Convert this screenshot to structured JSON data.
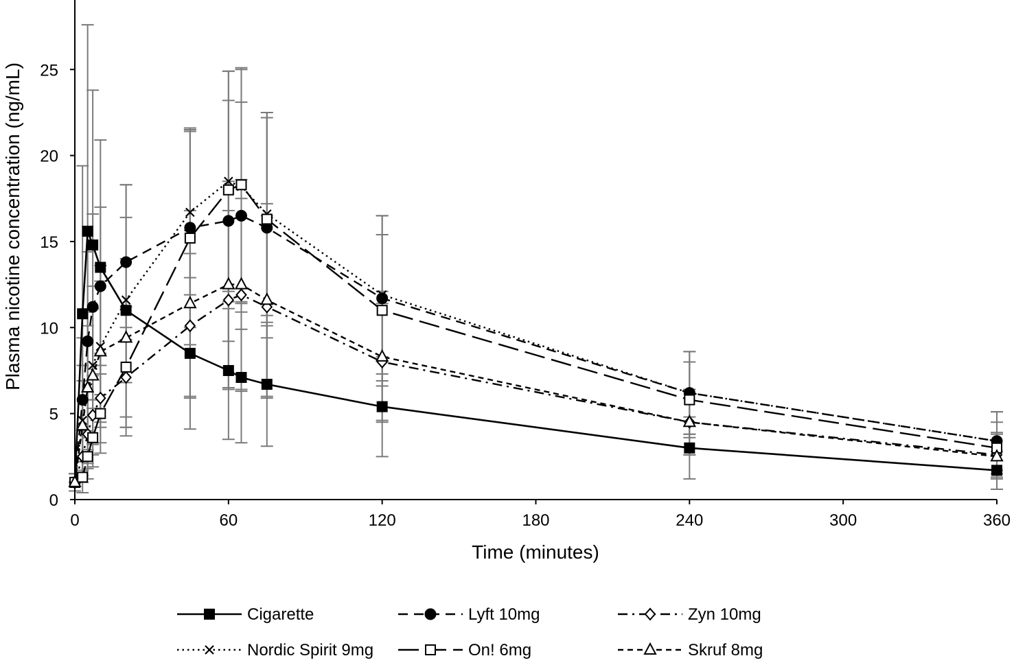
{
  "chart_data": {
    "type": "line",
    "xlabel": "Time (minutes)",
    "ylabel": "Plasma nicotine concentration (ng/mL)",
    "xlim": [
      0,
      360
    ],
    "ylim": [
      0,
      29
    ],
    "x_ticks": [
      0,
      60,
      120,
      180,
      240,
      300,
      360
    ],
    "x_tick_labels": [
      "0",
      "60",
      "120",
      "180",
      "240",
      "300",
      "360"
    ],
    "y_ticks": [
      0,
      5,
      10,
      15,
      20,
      25
    ],
    "y_tick_labels": [
      "0",
      "5",
      "10",
      "15",
      "20",
      "25"
    ],
    "grid": false,
    "legend_position": "bottom",
    "series": [
      {
        "name": "Cigarette",
        "marker": "filled-square",
        "dash": "solid",
        "x": [
          0,
          3,
          5,
          7,
          10,
          20,
          45,
          60,
          65,
          75,
          120,
          240,
          360
        ],
        "y": [
          1.0,
          10.8,
          15.6,
          14.8,
          13.5,
          11.0,
          8.5,
          7.5,
          7.1,
          6.7,
          5.4,
          3.0,
          1.7
        ],
        "err": [
          0.5,
          8.6,
          12.0,
          9.0,
          7.4,
          7.3,
          4.4,
          4.0,
          3.8,
          3.6,
          2.9,
          1.8,
          1.1
        ]
      },
      {
        "name": "Lyft 10mg",
        "marker": "filled-circle",
        "dash": "dashed",
        "x": [
          0,
          3,
          5,
          7,
          10,
          20,
          45,
          60,
          65,
          75,
          120,
          240,
          360
        ],
        "y": [
          1.0,
          5.8,
          9.2,
          11.2,
          12.4,
          13.8,
          15.8,
          16.2,
          16.5,
          15.8,
          11.7,
          6.2,
          3.4
        ],
        "err": [
          0.5,
          3.6,
          5.2,
          5.4,
          4.6,
          4.5,
          5.8,
          7.0,
          6.6,
          6.4,
          4.8,
          2.4,
          1.7
        ]
      },
      {
        "name": "Zyn 10mg",
        "marker": "open-diamond",
        "dash": "dashdot",
        "x": [
          0,
          3,
          5,
          7,
          10,
          20,
          45,
          60,
          65,
          75,
          120,
          240,
          360
        ],
        "y": [
          1.0,
          2.5,
          3.8,
          4.9,
          5.9,
          7.1,
          10.1,
          11.6,
          11.9,
          11.2,
          8.0,
          4.5,
          2.6
        ],
        "err": [
          0.5,
          1.5,
          2.0,
          2.3,
          2.6,
          2.9,
          4.2,
          5.2,
          5.6,
          5.3,
          3.4,
          1.9,
          1.3
        ]
      },
      {
        "name": "Nordic Spirit 9mg",
        "marker": "x",
        "dash": "dotted",
        "x": [
          0,
          3,
          5,
          7,
          10,
          20,
          45,
          60,
          65,
          75,
          120,
          240,
          360
        ],
        "y": [
          1.0,
          4.6,
          6.5,
          7.8,
          8.9,
          11.6,
          16.7,
          18.5,
          18.2,
          16.6,
          11.9,
          6.2,
          3.4
        ],
        "err": [
          0.5,
          3.2,
          4.4,
          4.6,
          4.7,
          4.8,
          4.8,
          6.4,
          6.8,
          5.9,
          4.6,
          2.4,
          1.7
        ]
      },
      {
        "name": "On! 6mg",
        "marker": "open-square",
        "dash": "longdash",
        "x": [
          0,
          3,
          5,
          7,
          10,
          20,
          45,
          60,
          65,
          75,
          120,
          240,
          360
        ],
        "y": [
          1.0,
          1.3,
          2.5,
          3.6,
          5.0,
          7.7,
          15.2,
          18.0,
          18.3,
          16.3,
          11.0,
          5.8,
          3.0
        ],
        "err": [
          0.5,
          0.9,
          1.3,
          1.7,
          2.3,
          3.5,
          6.2,
          6.9,
          6.8,
          6.2,
          4.4,
          2.2,
          1.5
        ]
      },
      {
        "name": "Skruf 8mg",
        "marker": "open-triangle",
        "dash": "shortdash",
        "x": [
          0,
          3,
          5,
          7,
          10,
          20,
          45,
          60,
          65,
          75,
          120,
          240,
          360
        ],
        "y": [
          1.0,
          4.3,
          6.5,
          7.2,
          8.6,
          9.4,
          11.4,
          12.5,
          12.5,
          11.6,
          8.3,
          4.5,
          2.5
        ],
        "err": [
          0.5,
          2.6,
          3.6,
          3.9,
          4.1,
          4.6,
          5.4,
          6.0,
          6.1,
          5.6,
          3.8,
          1.9,
          1.3
        ]
      }
    ]
  }
}
